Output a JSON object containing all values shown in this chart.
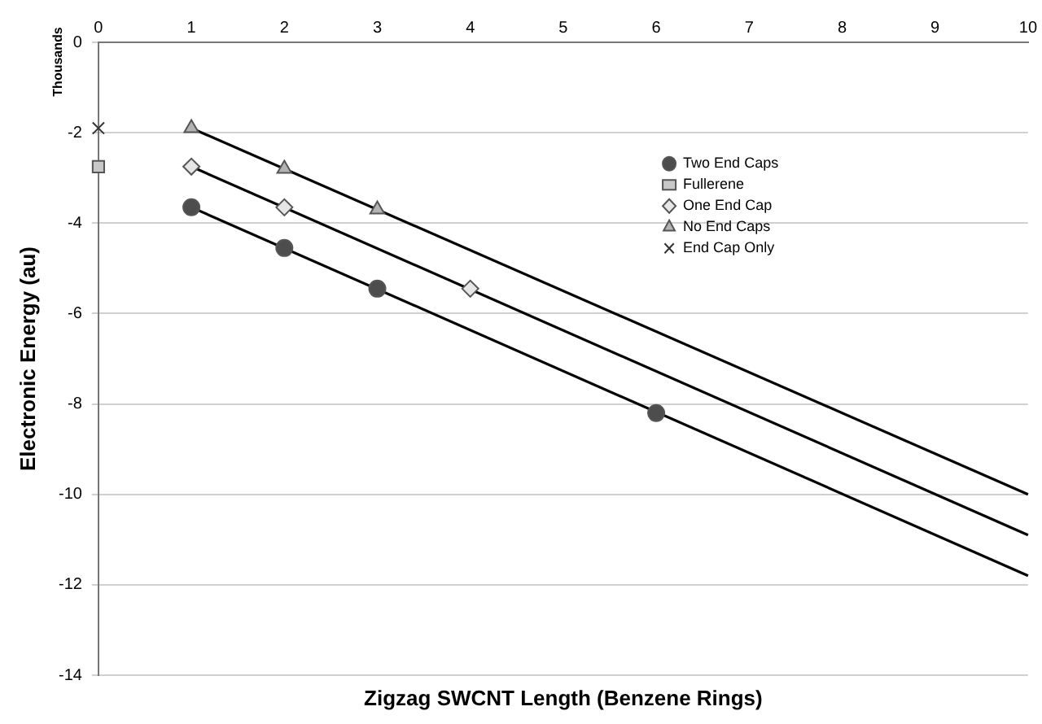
{
  "chart_data": {
    "type": "scatter",
    "xlabel": "Zigzag SWCNT Length (Benzene Rings)",
    "ylabel": "Electronic Energy (au)",
    "annotations": [
      "Thousands"
    ],
    "xlim": [
      0,
      10
    ],
    "xticks": [
      0,
      1,
      2,
      3,
      4,
      5,
      6,
      7,
      8,
      9,
      10
    ],
    "ylim": [
      -14,
      0
    ],
    "yticks": [
      0,
      -2,
      -4,
      -6,
      -8,
      -10,
      -12,
      -14
    ],
    "grid": "y",
    "legend": "top right",
    "series": [
      {
        "name": "Two End Caps",
        "type": "scatter",
        "marker": "circle",
        "color": "#4d4d4d",
        "x": [
          1,
          2,
          3,
          6
        ],
        "values": [
          -3.65,
          -4.55,
          -5.45,
          -8.2
        ]
      },
      {
        "name": "Fullerene",
        "type": "scatter",
        "marker": "square",
        "color": "#c8c8c8",
        "x": [
          0
        ],
        "values": [
          -2.75
        ]
      },
      {
        "name": "One End Cap",
        "type": "scatter",
        "marker": "diamond",
        "color": "#e6e6e6",
        "x": [
          1,
          2,
          4
        ],
        "values": [
          -2.75,
          -3.65,
          -5.45
        ]
      },
      {
        "name": "No End Caps",
        "type": "scatter",
        "marker": "triangle",
        "color": "#b3b3b3",
        "x": [
          1,
          2,
          3
        ],
        "values": [
          -1.9,
          -2.8,
          -3.7
        ]
      },
      {
        "name": "End Cap Only",
        "type": "scatter",
        "marker": "cross",
        "color": "#333333",
        "x": [
          0
        ],
        "values": [
          -1.9
        ]
      },
      {
        "type": "line",
        "marker": "none",
        "color": "#000000",
        "x": [
          1,
          10
        ],
        "values": [
          -3.65,
          -11.8
        ]
      },
      {
        "type": "line",
        "marker": "none",
        "color": "#000000",
        "x": [
          1,
          10
        ],
        "values": [
          -2.75,
          -10.9
        ]
      },
      {
        "type": "line",
        "marker": "none",
        "color": "#000000",
        "x": [
          1,
          10
        ],
        "values": [
          -1.9,
          -10.0
        ]
      }
    ]
  }
}
